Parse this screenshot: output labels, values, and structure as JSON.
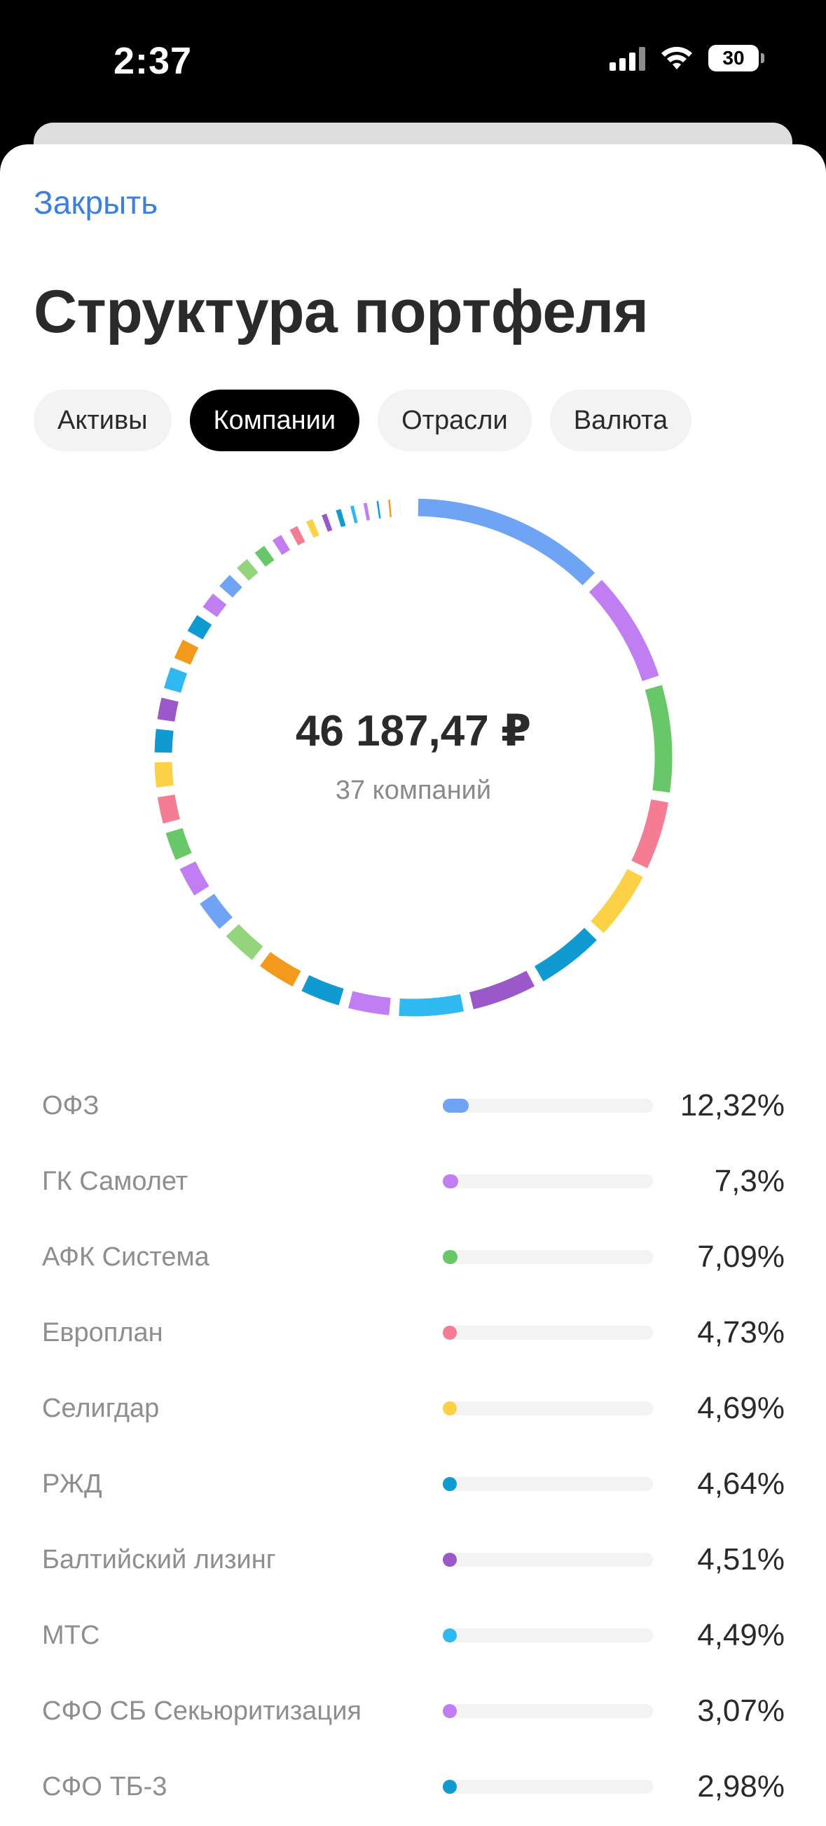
{
  "status_bar": {
    "time": "2:37",
    "battery": "30"
  },
  "header": {
    "close_label": "Закрыть",
    "title": "Структура портфеля"
  },
  "tabs": [
    {
      "label": "Активы",
      "active": false
    },
    {
      "label": "Компании",
      "active": true
    },
    {
      "label": "Отрасли",
      "active": false
    },
    {
      "label": "Валюта",
      "active": false
    }
  ],
  "summary": {
    "total": "46 187,47 ₽",
    "count": "37 компаний"
  },
  "colors": {
    "blue": "#6fa4f5",
    "violet": "#c07ef2",
    "green": "#68c768",
    "pink": "#f57d93",
    "yellow": "#fcd145",
    "teal": "#0f9ad1",
    "purple": "#9a58c8",
    "cyan": "#2fb9f0",
    "lightgreen": "#93d47c",
    "orange": "#f39a1c"
  },
  "companies": [
    {
      "name": "ОФЗ",
      "percent": "12,32%",
      "value": 12.32,
      "color": "#6fa4f5"
    },
    {
      "name": "ГК Самолет",
      "percent": "7,3%",
      "value": 7.3,
      "color": "#c07ef2"
    },
    {
      "name": "АФК Система",
      "percent": "7,09%",
      "value": 7.09,
      "color": "#68c768"
    },
    {
      "name": "Европлан",
      "percent": "4,73%",
      "value": 4.73,
      "color": "#f57d93"
    },
    {
      "name": "Селигдар",
      "percent": "4,69%",
      "value": 4.69,
      "color": "#fcd145"
    },
    {
      "name": "РЖД",
      "percent": "4,64%",
      "value": 4.64,
      "color": "#0f9ad1"
    },
    {
      "name": "Балтийский лизинг",
      "percent": "4,51%",
      "value": 4.51,
      "color": "#9a58c8"
    },
    {
      "name": "МТС",
      "percent": "4,49%",
      "value": 4.49,
      "color": "#2fb9f0"
    },
    {
      "name": "СФО СБ Секьюритизация",
      "percent": "3,07%",
      "value": 3.07,
      "color": "#c07ef2"
    },
    {
      "name": "СФО ТБ-3",
      "percent": "2,98%",
      "value": 2.98,
      "color": "#0f9ad1"
    }
  ],
  "chart_data": {
    "type": "pie",
    "style": "donut",
    "total_label": "46 187,47 ₽",
    "subtitle": "37 компаний",
    "slices": [
      {
        "label": "ОФЗ",
        "value": 12.32,
        "color": "#6fa4f5"
      },
      {
        "label": "ГК Самолет",
        "value": 7.3,
        "color": "#c07ef2"
      },
      {
        "label": "АФК Система",
        "value": 7.09,
        "color": "#68c768"
      },
      {
        "label": "Европлан",
        "value": 4.73,
        "color": "#f57d93"
      },
      {
        "label": "Селигдар",
        "value": 4.69,
        "color": "#fcd145"
      },
      {
        "label": "РЖД",
        "value": 4.64,
        "color": "#0f9ad1"
      },
      {
        "label": "Балтийский лизинг",
        "value": 4.51,
        "color": "#9a58c8"
      },
      {
        "label": "МТС",
        "value": 4.49,
        "color": "#2fb9f0"
      },
      {
        "label": "СФО СБ Секьюритизация",
        "value": 3.07,
        "color": "#c07ef2"
      },
      {
        "label": "СФО ТБ-3",
        "value": 2.98,
        "color": "#0f9ad1"
      },
      {
        "value": 2.9,
        "color": "#f39a1c"
      },
      {
        "value": 2.7,
        "color": "#93d47c"
      },
      {
        "value": 2.5,
        "color": "#6fa4f5"
      },
      {
        "value": 2.4,
        "color": "#c07ef2"
      },
      {
        "value": 2.3,
        "color": "#68c768"
      },
      {
        "value": 2.2,
        "color": "#f57d93"
      },
      {
        "value": 2.1,
        "color": "#fcd145"
      },
      {
        "value": 2.0,
        "color": "#0f9ad1"
      },
      {
        "value": 1.9,
        "color": "#9a58c8"
      },
      {
        "value": 1.9,
        "color": "#2fb9f0"
      },
      {
        "value": 1.8,
        "color": "#f39a1c"
      },
      {
        "value": 1.7,
        "color": "#0f9ad1"
      },
      {
        "value": 1.6,
        "color": "#c07ef2"
      },
      {
        "value": 1.5,
        "color": "#6fa4f5"
      },
      {
        "value": 1.4,
        "color": "#93d47c"
      },
      {
        "value": 1.3,
        "color": "#68c768"
      },
      {
        "value": 1.2,
        "color": "#c07ef2"
      },
      {
        "value": 1.1,
        "color": "#f57d93"
      },
      {
        "value": 1.0,
        "color": "#fcd145"
      },
      {
        "value": 0.9,
        "color": "#9a58c8"
      },
      {
        "value": 0.9,
        "color": "#0f9ad1"
      },
      {
        "value": 0.8,
        "color": "#2fb9f0"
      },
      {
        "value": 0.8,
        "color": "#c07ef2"
      },
      {
        "value": 0.7,
        "color": "#0f9ad1"
      },
      {
        "value": 0.7,
        "color": "#f39a1c"
      },
      {
        "value": 0.6,
        "color": "#93d47c"
      },
      {
        "value": 0.5,
        "color": "#6fa4f5"
      }
    ]
  }
}
